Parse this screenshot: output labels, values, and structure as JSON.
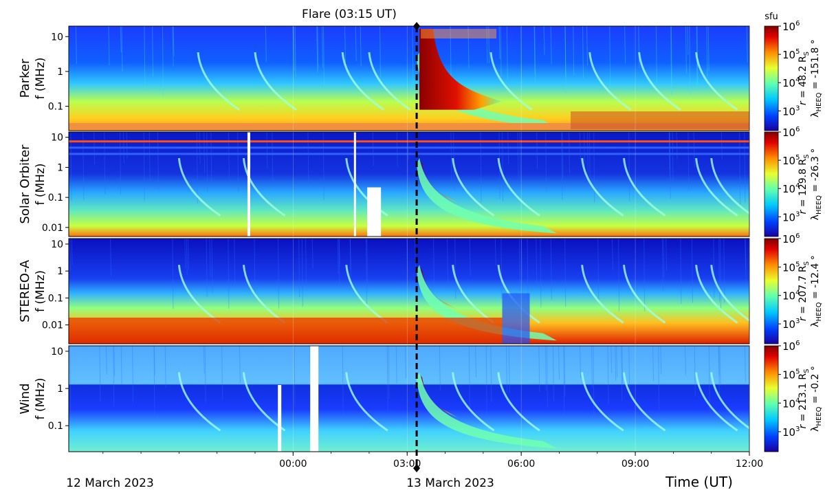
{
  "chart_data": {
    "type": "heatmap",
    "title": "Flare (03:15 UT)",
    "xlabel": "Time (UT)",
    "x_tick_labels": [
      "00:00",
      "03:00",
      "06:00",
      "09:00",
      "12:00"
    ],
    "x_tick_hours": [
      0,
      3,
      6,
      9,
      12
    ],
    "x_range_hours": [
      -5.9,
      12.0
    ],
    "date_labels": [
      "12 March 2023",
      "13 March 2023"
    ],
    "flare_hour": 3.25,
    "colorbar": {
      "unit": "sfu",
      "scale": "log",
      "range": [
        200,
        1000000
      ],
      "tick_labels": [
        "10^3",
        "10^4",
        "10^5",
        "10^6"
      ],
      "colors": [
        "#1a00a0",
        "#0040ff",
        "#00c8ff",
        "#60ffb0",
        "#e8ff30",
        "#ff8c00",
        "#e00000",
        "#800000"
      ]
    },
    "panels": [
      {
        "name": "Parker",
        "ylabel": "f (MHz)",
        "yscale": "log",
        "yrange": [
          0.02,
          20
        ],
        "ytick_labels": [
          "0.1",
          "1",
          "10"
        ],
        "ytick_values": [
          0.1,
          1,
          10
        ],
        "position_text": "r = 48.2 R",
        "position_sub": "S",
        "lon_prefix": "λ",
        "lon_sub": "HEEQ",
        "lon_text": " = -151.8 °"
      },
      {
        "name": "Solar Orbiter",
        "ylabel": "f (MHz)",
        "yscale": "log",
        "yrange": [
          0.005,
          15
        ],
        "ytick_labels": [
          "0.01",
          "0.1",
          "1",
          "10"
        ],
        "ytick_values": [
          0.01,
          0.1,
          1,
          10
        ],
        "position_text": "r = 129.8 R",
        "position_sub": "S",
        "lon_prefix": "λ",
        "lon_sub": "HEEQ",
        "lon_text": " = -26.3 °"
      },
      {
        "name": "STEREO-A",
        "ylabel": "f (MHz)",
        "yscale": "log",
        "yrange": [
          0.002,
          16
        ],
        "ytick_labels": [
          "0.01",
          "0.1",
          "1",
          "10"
        ],
        "ytick_values": [
          0.01,
          0.1,
          1,
          10
        ],
        "position_text": "r = 207.7 R",
        "position_sub": "S",
        "lon_prefix": "λ",
        "lon_sub": "HEEQ",
        "lon_text": " = -12.4 °"
      },
      {
        "name": "Wind",
        "ylabel": "f (MHz)",
        "yscale": "log",
        "yrange": [
          0.02,
          14
        ],
        "ytick_labels": [
          "0.1",
          "1",
          "10"
        ],
        "ytick_values": [
          0.1,
          1,
          10
        ],
        "position_text": "r = 213.1 R",
        "position_sub": "S",
        "lon_prefix": "λ",
        "lon_sub": "HEEQ",
        "lon_text": " = -0.2 °"
      }
    ]
  }
}
